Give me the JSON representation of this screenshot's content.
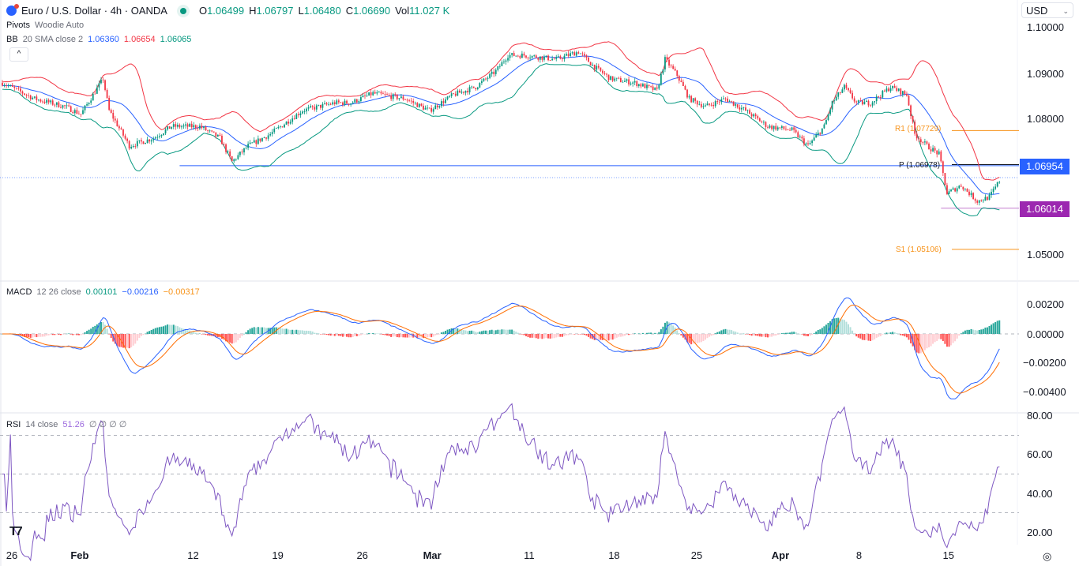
{
  "header": {
    "symbol": "Euro / U.S. Dollar · 4h · OANDA",
    "o_label": "O",
    "o": "1.06499",
    "h_label": "H",
    "h": "1.06797",
    "l_label": "L",
    "l": "1.06480",
    "c_label": "C",
    "c": "1.06690",
    "vol_label": "Vol",
    "vol": "11.027 K"
  },
  "indicators": {
    "pivots": {
      "name": "Pivots",
      "params": "Woodie Auto"
    },
    "bb": {
      "name": "BB",
      "params": "20 SMA close 2",
      "basis": "1.06360",
      "upper": "1.06654",
      "lower": "1.06065"
    },
    "macd": {
      "name": "MACD",
      "params": "12 26 close",
      "hist": "0.00101",
      "macd": "−0.00216",
      "signal": "−0.00317"
    },
    "rsi": {
      "name": "RSI",
      "params": "14 close",
      "value": "51.26",
      "extras": "∅ ∅ ∅ ∅"
    }
  },
  "collapse_label": "^",
  "currency": "USD",
  "colors": {
    "up": "#089981",
    "down": "#f23645",
    "bb_basis": "#2962ff",
    "bb_upper": "#f23645",
    "bb_lower": "#089981",
    "pivot": "#f7931a",
    "line_blue": "#2962ff",
    "line_purple": "#9c27b0",
    "rsi": "#7e57c2"
  },
  "chart_data": {
    "type": "candlestick",
    "title": "Euro / U.S. Dollar · 4h · OANDA",
    "bars_total": 496,
    "close_keypoints": [
      [
        0,
        1.0878
      ],
      [
        16,
        1.0843
      ],
      [
        31,
        1.0826
      ],
      [
        39,
        1.0809
      ],
      [
        50,
        1.0887
      ],
      [
        53,
        1.0817
      ],
      [
        63,
        1.0739
      ],
      [
        75,
        1.0756
      ],
      [
        84,
        1.0782
      ],
      [
        98,
        1.0782
      ],
      [
        108,
        1.0756
      ],
      [
        114,
        1.0704
      ],
      [
        122,
        1.0739
      ],
      [
        133,
        1.0765
      ],
      [
        149,
        1.0817
      ],
      [
        165,
        1.0834
      ],
      [
        173,
        1.0834
      ],
      [
        184,
        1.0855
      ],
      [
        200,
        1.0843
      ],
      [
        212,
        1.0817
      ],
      [
        224,
        1.0852
      ],
      [
        235,
        1.0869
      ],
      [
        245,
        1.0904
      ],
      [
        251,
        1.0939
      ],
      [
        259,
        1.0939
      ],
      [
        275,
        1.093
      ],
      [
        286,
        1.0947
      ],
      [
        294,
        1.0913
      ],
      [
        302,
        1.0887
      ],
      [
        314,
        1.0878
      ],
      [
        325,
        1.0861
      ],
      [
        329,
        1.093
      ],
      [
        335,
        1.0895
      ],
      [
        341,
        1.0843
      ],
      [
        349,
        1.0826
      ],
      [
        359,
        1.0843
      ],
      [
        369,
        1.0817
      ],
      [
        380,
        1.0782
      ],
      [
        392,
        1.0774
      ],
      [
        400,
        1.0739
      ],
      [
        408,
        1.0782
      ],
      [
        412,
        1.0834
      ],
      [
        418,
        1.0869
      ],
      [
        424,
        1.0834
      ],
      [
        431,
        1.0834
      ],
      [
        441,
        1.0869
      ],
      [
        449,
        1.0852
      ],
      [
        453,
        1.0765
      ],
      [
        459,
        1.0739
      ],
      [
        465,
        1.0721
      ],
      [
        469,
        1.0634
      ],
      [
        476,
        1.0652
      ],
      [
        484,
        1.0617
      ],
      [
        490,
        1.0626
      ],
      [
        496,
        1.0669
      ]
    ],
    "price_axis": {
      "ticks": [
        "1.10000",
        "1.09000",
        "1.08000",
        "1.05000"
      ],
      "range": [
        1.045,
        1.1057
      ]
    },
    "macd_axis": {
      "ticks": [
        "0.00200",
        "0.00000",
        "−0.00200",
        "−0.00400"
      ]
    },
    "rsi_axis": {
      "ticks": [
        "80.00",
        "60.00",
        "40.00",
        "20.00"
      ],
      "bands": [
        70,
        50,
        30
      ]
    },
    "time_axis": [
      {
        "label": "26",
        "bar": 5,
        "bold": false
      },
      {
        "label": "Feb",
        "bar": 37,
        "bold": true
      },
      {
        "label": "12",
        "bar": 95,
        "bold": false
      },
      {
        "label": "19",
        "bar": 137,
        "bold": false
      },
      {
        "label": "26",
        "bar": 179,
        "bold": false
      },
      {
        "label": "Mar",
        "bar": 212,
        "bold": true
      },
      {
        "label": "11",
        "bar": 262,
        "bold": false
      },
      {
        "label": "18",
        "bar": 304,
        "bold": false
      },
      {
        "label": "25",
        "bar": 345,
        "bold": false
      },
      {
        "label": "Apr",
        "bar": 385,
        "bold": true
      },
      {
        "label": "8",
        "bar": 427,
        "bold": false
      },
      {
        "label": "15",
        "bar": 470,
        "bold": false
      }
    ],
    "levels": {
      "drawn_line": {
        "value": 1.06954,
        "label": "1.06954",
        "from_bar": 88
      },
      "support_line": {
        "value": 1.06014,
        "label": "1.06014",
        "from_bar": 466
      },
      "pivot_p": {
        "value": 1.06978,
        "label": "P (1.06978)"
      },
      "pivot_r1": {
        "value": 1.07729,
        "label": "R1 (1.07729)"
      },
      "pivot_s1": {
        "value": 1.05106,
        "label": "S1 (1.05106)"
      },
      "last_price": 1.0669
    }
  }
}
